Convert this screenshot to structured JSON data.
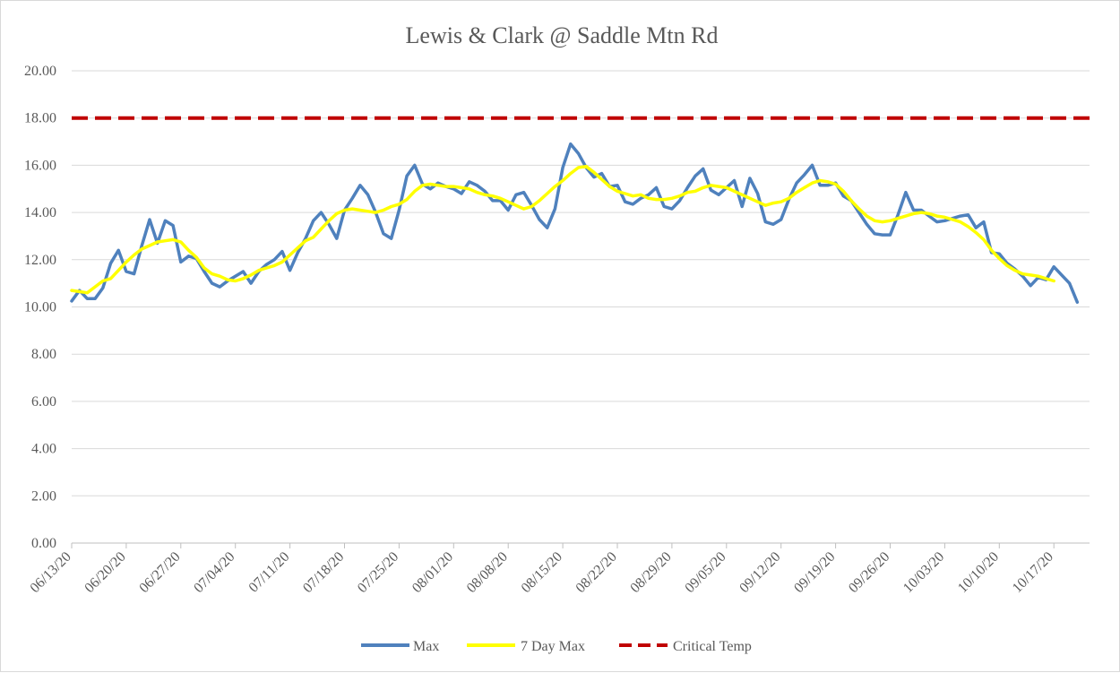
{
  "chart_data": {
    "type": "line",
    "title": "Lewis & Clark @ Saddle Mtn Rd",
    "xlabel": "",
    "ylabel": "",
    "ylim": [
      0,
      20
    ],
    "y_ticks": [
      "0.00",
      "2.00",
      "4.00",
      "6.00",
      "8.00",
      "10.00",
      "12.00",
      "14.00",
      "16.00",
      "18.00",
      "20.00"
    ],
    "x_start_date": "06/13/20",
    "x_tick_labels": [
      "06/13/20",
      "06/20/20",
      "06/27/20",
      "07/04/20",
      "07/11/20",
      "07/18/20",
      "07/25/20",
      "08/01/20",
      "08/08/20",
      "08/15/20",
      "08/22/20",
      "08/29/20",
      "09/05/20",
      "09/12/20",
      "09/19/20",
      "09/26/20",
      "10/03/20",
      "10/10/20",
      "10/17/20"
    ],
    "grid": true,
    "legend_position": "bottom",
    "series": [
      {
        "name": "Max",
        "color": "#4f81bd",
        "values": [
          10.25,
          10.7,
          10.35,
          10.35,
          10.8,
          11.85,
          12.4,
          11.5,
          11.4,
          12.6,
          13.7,
          12.7,
          13.65,
          13.45,
          11.9,
          12.15,
          12.05,
          11.5,
          11.0,
          10.85,
          11.1,
          11.3,
          11.5,
          11.0,
          11.5,
          11.8,
          12.0,
          12.35,
          11.55,
          12.3,
          12.9,
          13.65,
          14.0,
          13.5,
          12.9,
          14.1,
          14.6,
          15.15,
          14.75,
          14.0,
          13.1,
          12.9,
          14.1,
          15.55,
          16.0,
          15.2,
          15.0,
          15.25,
          15.1,
          15.0,
          14.8,
          15.3,
          15.15,
          14.9,
          14.5,
          14.5,
          14.1,
          14.75,
          14.85,
          14.3,
          13.7,
          13.35,
          14.15,
          15.9,
          16.9,
          16.5,
          15.9,
          15.5,
          15.65,
          15.1,
          15.15,
          14.45,
          14.35,
          14.6,
          14.75,
          15.05,
          14.25,
          14.15,
          14.5,
          15.05,
          15.55,
          15.85,
          14.95,
          14.75,
          15.05,
          15.35,
          14.25,
          15.45,
          14.8,
          13.6,
          13.5,
          13.7,
          14.55,
          15.25,
          15.6,
          16.0,
          15.15,
          15.15,
          15.25,
          14.7,
          14.5,
          14.0,
          13.5,
          13.1,
          13.05,
          13.05,
          13.9,
          14.85,
          14.1,
          14.1,
          13.85,
          13.6,
          13.65,
          13.75,
          13.85,
          13.9,
          13.35,
          13.6,
          12.3,
          12.25,
          11.85,
          11.6,
          11.3,
          10.9,
          11.25,
          11.15,
          11.7,
          11.35,
          11.0,
          10.2
        ]
      },
      {
        "name": "7 Day Max",
        "color": "#ffff00",
        "values": [
          10.7,
          10.65,
          10.6,
          10.85,
          11.1,
          11.2,
          11.55,
          11.9,
          12.2,
          12.45,
          12.6,
          12.75,
          12.8,
          12.85,
          12.75,
          12.4,
          12.1,
          11.65,
          11.4,
          11.3,
          11.15,
          11.1,
          11.2,
          11.35,
          11.55,
          11.65,
          11.75,
          11.9,
          12.2,
          12.5,
          12.8,
          12.95,
          13.3,
          13.65,
          13.95,
          14.1,
          14.15,
          14.1,
          14.05,
          14.0,
          14.1,
          14.25,
          14.35,
          14.55,
          14.9,
          15.15,
          15.2,
          15.15,
          15.1,
          15.1,
          15.05,
          15.0,
          14.85,
          14.75,
          14.7,
          14.6,
          14.45,
          14.3,
          14.15,
          14.25,
          14.5,
          14.8,
          15.1,
          15.35,
          15.65,
          15.9,
          15.95,
          15.7,
          15.4,
          15.1,
          14.9,
          14.8,
          14.7,
          14.75,
          14.6,
          14.55,
          14.55,
          14.6,
          14.7,
          14.85,
          14.9,
          15.05,
          15.15,
          15.1,
          15.05,
          14.9,
          14.75,
          14.6,
          14.45,
          14.3,
          14.4,
          14.45,
          14.6,
          14.85,
          15.05,
          15.25,
          15.35,
          15.3,
          15.2,
          14.9,
          14.5,
          14.15,
          13.85,
          13.65,
          13.6,
          13.65,
          13.75,
          13.85,
          13.95,
          14.0,
          13.95,
          13.85,
          13.8,
          13.7,
          13.6,
          13.4,
          13.15,
          12.85,
          12.4,
          12.05,
          11.75,
          11.55,
          11.4,
          11.35,
          11.3,
          11.2,
          11.1
        ]
      },
      {
        "name": "Critical Temp",
        "color": "#c00000",
        "constant": 18
      }
    ]
  }
}
